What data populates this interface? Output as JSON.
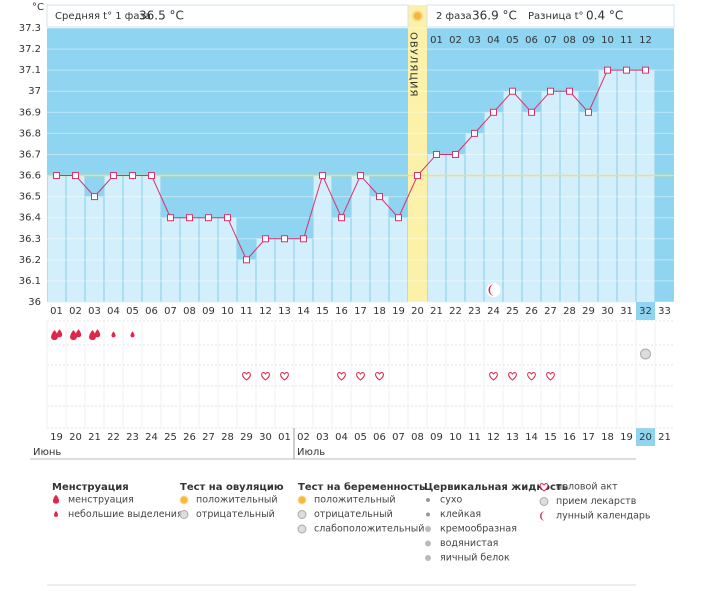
{
  "header": {
    "unit": "°C",
    "phase1_label": "Средняя t° 1 фаза",
    "phase1_value": "36.5 °C",
    "phase2_label": "2 фаза",
    "phase2_value": "36.9 °C",
    "diff_label": "Разница t°",
    "diff_value": "0.4 °C",
    "ovulation_label": "ОВУЛЯЦИЯ"
  },
  "chart_data": {
    "type": "line",
    "color": "#d6336c",
    "categories": [
      "01",
      "02",
      "03",
      "04",
      "05",
      "06",
      "07",
      "08",
      "09",
      "10",
      "11",
      "12",
      "13",
      "14",
      "15",
      "16",
      "17",
      "18",
      "19",
      "20",
      "21",
      "22",
      "23",
      "24",
      "25",
      "26",
      "27",
      "28",
      "29",
      "30",
      "31",
      "32",
      "33"
    ],
    "values": [
      36.6,
      36.6,
      36.5,
      36.6,
      36.6,
      36.6,
      36.4,
      36.4,
      36.4,
      36.4,
      36.2,
      36.3,
      36.3,
      36.3,
      36.6,
      36.4,
      36.6,
      36.5,
      36.4,
      36.6,
      36.7,
      36.7,
      36.8,
      36.9,
      37.0,
      36.9,
      37.0,
      37.0,
      36.9,
      37.1,
      37.1,
      37.1,
      null
    ],
    "ylim": [
      36,
      37.3
    ],
    "yticks": [
      36,
      36.1,
      36.2,
      36.3,
      36.4,
      36.5,
      36.6,
      36.7,
      36.8,
      36.9,
      37,
      37.1,
      37.2,
      37.3
    ],
    "cover_line": 36.6,
    "ovulation_day": 20,
    "today": 32,
    "phase2_days": [
      "01",
      "02",
      "03",
      "04",
      "05",
      "06",
      "07",
      "08",
      "09",
      "10",
      "11",
      "12"
    ],
    "markers": {
      "menstruation": [
        1,
        2,
        3
      ],
      "spotting": [
        4,
        5
      ],
      "intercourse": [
        11,
        12,
        13,
        16,
        17,
        18,
        24,
        25,
        26,
        27
      ],
      "pregnancy_test_negative": [
        32
      ],
      "lunar": [
        24
      ]
    },
    "calendar": {
      "dates": [
        "19",
        "20",
        "21",
        "22",
        "23",
        "24",
        "25",
        "26",
        "27",
        "28",
        "29",
        "30",
        "01",
        "02",
        "03",
        "04",
        "05",
        "06",
        "07",
        "08",
        "09",
        "10",
        "11",
        "12",
        "13",
        "14",
        "15",
        "16",
        "17",
        "18",
        "19",
        "20",
        "21"
      ],
      "weekend": [
        false,
        false,
        false,
        true,
        true,
        false,
        false,
        false,
        false,
        false,
        true,
        true,
        false,
        false,
        false,
        false,
        false,
        true,
        true,
        false,
        false,
        false,
        false,
        false,
        true,
        true,
        false,
        false,
        false,
        false,
        false,
        false,
        true
      ],
      "months": [
        "Июнь",
        "Июль"
      ],
      "month_starts": [
        1,
        13
      ]
    }
  },
  "legend": [
    {
      "title": "Менструация",
      "items": [
        "менструация",
        "небольшие выделения"
      ]
    },
    {
      "title": "Тест на овуляцию",
      "items": [
        "положительный",
        "отрицательный"
      ]
    },
    {
      "title": "Тест на беременность",
      "items": [
        "положительный",
        "отрицательный",
        "слабоположительный"
      ]
    },
    {
      "title": "Цервикальная жидкость",
      "items": [
        "сухо",
        "клейкая",
        "кремообразная",
        "водянистая",
        "яичный белок"
      ]
    },
    {
      "items": [
        "половой акт",
        "прием лекарств",
        "лунный календарь"
      ]
    }
  ]
}
